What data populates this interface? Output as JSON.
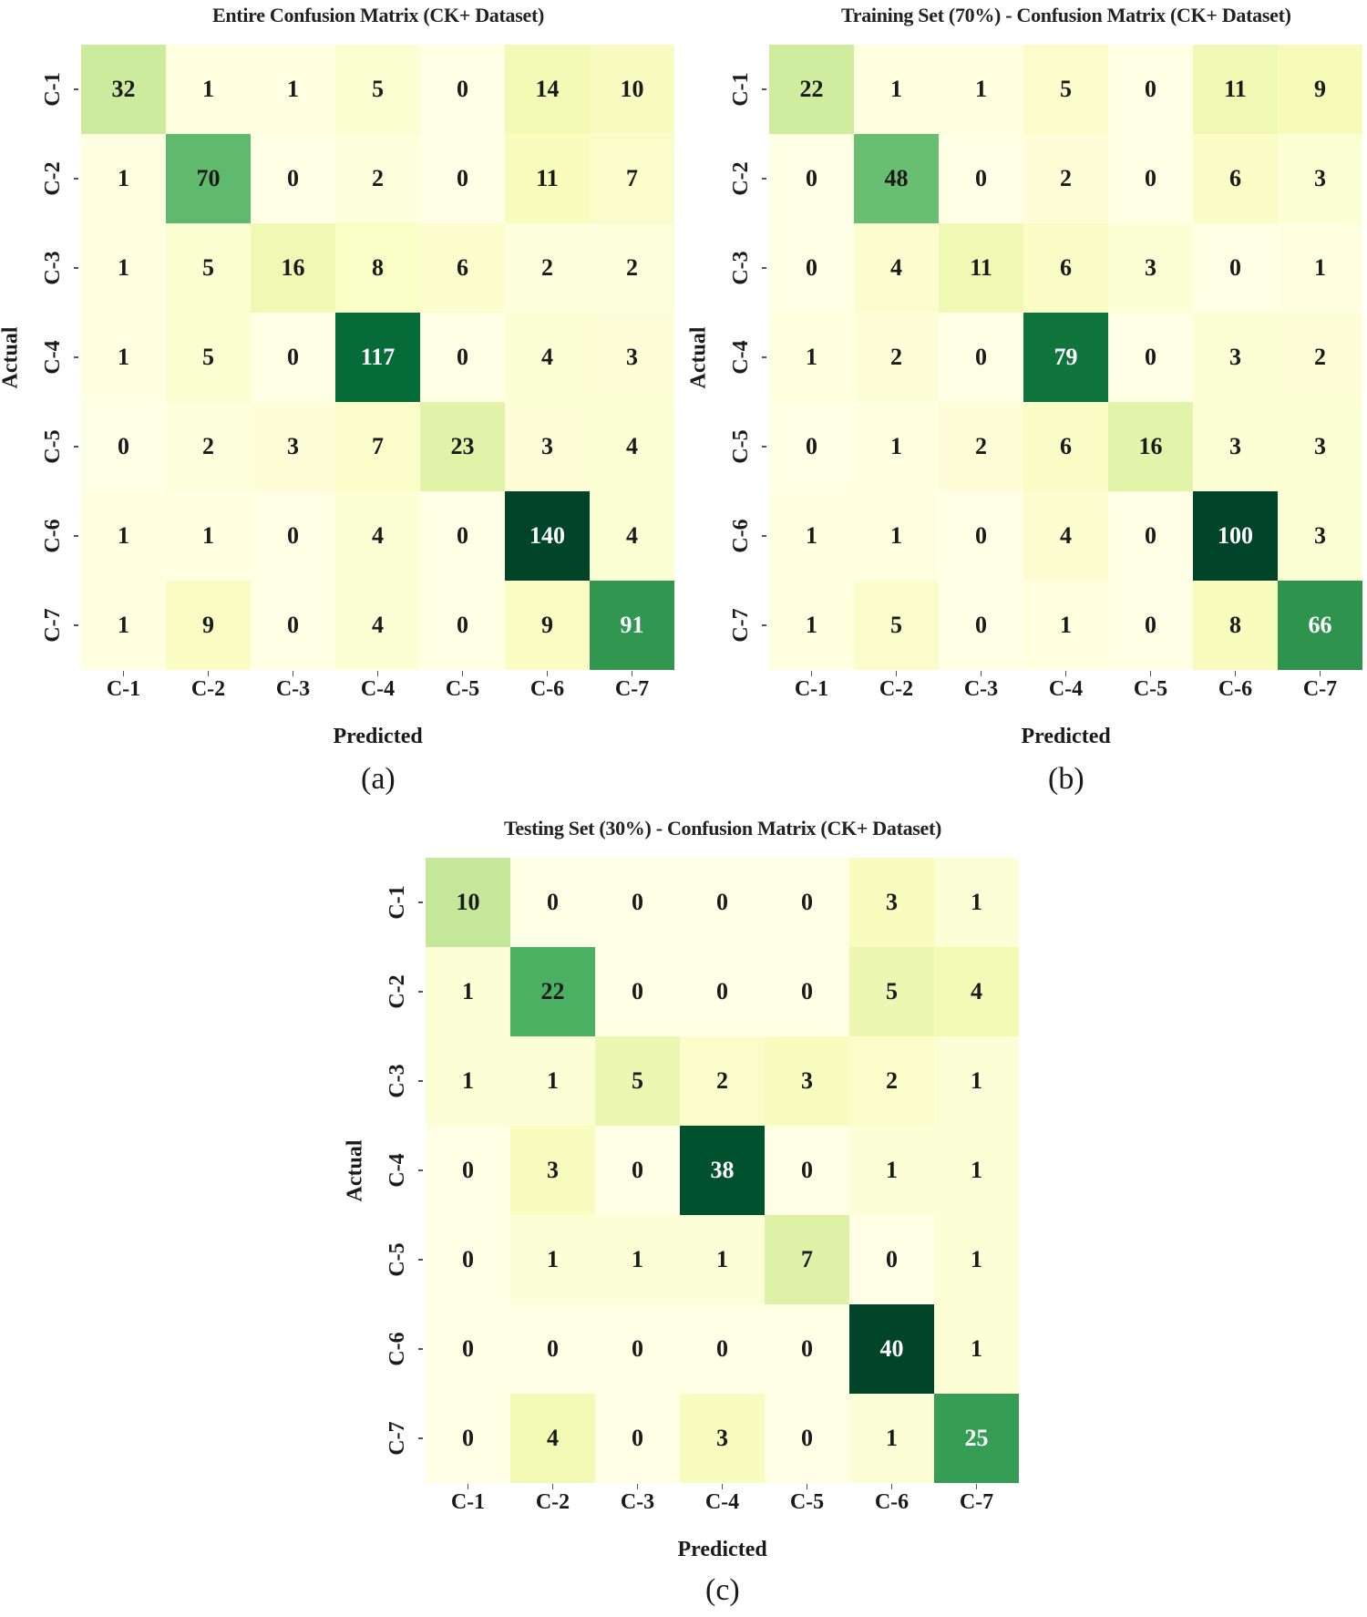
{
  "labels": [
    "C-1",
    "C-2",
    "C-3",
    "C-4",
    "C-5",
    "C-6",
    "C-7"
  ],
  "axis": {
    "x": "Predicted",
    "y": "Actual"
  },
  "panels": [
    {
      "id": "a",
      "title": "Entire Confusion Matrix (CK+ Dataset)",
      "caption": "(a)"
    },
    {
      "id": "b",
      "title": "Training Set (70%) - Confusion Matrix (CK+ Dataset)",
      "caption": "(b)"
    },
    {
      "id": "c",
      "title": "Testing Set (30%) - Confusion Matrix (CK+ Dataset)",
      "caption": "(c)"
    }
  ],
  "colormap": [
    "#ffffe5",
    "#f7fcb9",
    "#d9f0a3",
    "#addd8e",
    "#78c679",
    "#41ab5d",
    "#238443",
    "#006837",
    "#004529"
  ],
  "chart_data": [
    {
      "type": "heatmap",
      "title": "Entire Confusion Matrix (CK+ Dataset)",
      "xlabel": "Predicted",
      "ylabel": "Actual",
      "x": [
        "C-1",
        "C-2",
        "C-3",
        "C-4",
        "C-5",
        "C-6",
        "C-7"
      ],
      "y": [
        "C-1",
        "C-2",
        "C-3",
        "C-4",
        "C-5",
        "C-6",
        "C-7"
      ],
      "values": [
        [
          32,
          1,
          1,
          5,
          0,
          14,
          10
        ],
        [
          1,
          70,
          0,
          2,
          0,
          11,
          7
        ],
        [
          1,
          5,
          16,
          8,
          6,
          2,
          2
        ],
        [
          1,
          5,
          0,
          117,
          0,
          4,
          3
        ],
        [
          0,
          2,
          3,
          7,
          23,
          3,
          4
        ],
        [
          1,
          1,
          0,
          4,
          0,
          140,
          4
        ],
        [
          1,
          9,
          0,
          4,
          0,
          9,
          91
        ]
      ],
      "colormap": "Greens (YlGn)",
      "annotated": true,
      "colorbar": false
    },
    {
      "type": "heatmap",
      "title": "Training Set (70%) - Confusion Matrix (CK+ Dataset)",
      "xlabel": "Predicted",
      "ylabel": "Actual",
      "x": [
        "C-1",
        "C-2",
        "C-3",
        "C-4",
        "C-5",
        "C-6",
        "C-7"
      ],
      "y": [
        "C-1",
        "C-2",
        "C-3",
        "C-4",
        "C-5",
        "C-6",
        "C-7"
      ],
      "values": [
        [
          22,
          1,
          1,
          5,
          0,
          11,
          9
        ],
        [
          0,
          48,
          0,
          2,
          0,
          6,
          3
        ],
        [
          0,
          4,
          11,
          6,
          3,
          0,
          1
        ],
        [
          1,
          2,
          0,
          79,
          0,
          3,
          2
        ],
        [
          0,
          1,
          2,
          6,
          16,
          3,
          3
        ],
        [
          1,
          1,
          0,
          4,
          0,
          100,
          3
        ],
        [
          1,
          5,
          0,
          1,
          0,
          8,
          66
        ]
      ],
      "colormap": "Greens (YlGn)",
      "annotated": true,
      "colorbar": false
    },
    {
      "type": "heatmap",
      "title": "Testing Set (30%) - Confusion Matrix (CK+ Dataset)",
      "xlabel": "Predicted",
      "ylabel": "Actual",
      "x": [
        "C-1",
        "C-2",
        "C-3",
        "C-4",
        "C-5",
        "C-6",
        "C-7"
      ],
      "y": [
        "C-1",
        "C-2",
        "C-3",
        "C-4",
        "C-5",
        "C-6",
        "C-7"
      ],
      "values": [
        [
          10,
          0,
          0,
          0,
          0,
          3,
          1
        ],
        [
          1,
          22,
          0,
          0,
          0,
          5,
          4
        ],
        [
          1,
          1,
          5,
          2,
          3,
          2,
          1
        ],
        [
          0,
          3,
          0,
          38,
          0,
          1,
          1
        ],
        [
          0,
          1,
          1,
          1,
          7,
          0,
          1
        ],
        [
          0,
          0,
          0,
          0,
          0,
          40,
          1
        ],
        [
          0,
          4,
          0,
          3,
          0,
          1,
          25
        ]
      ],
      "colormap": "Greens (YlGn)",
      "annotated": true,
      "colorbar": false
    }
  ]
}
